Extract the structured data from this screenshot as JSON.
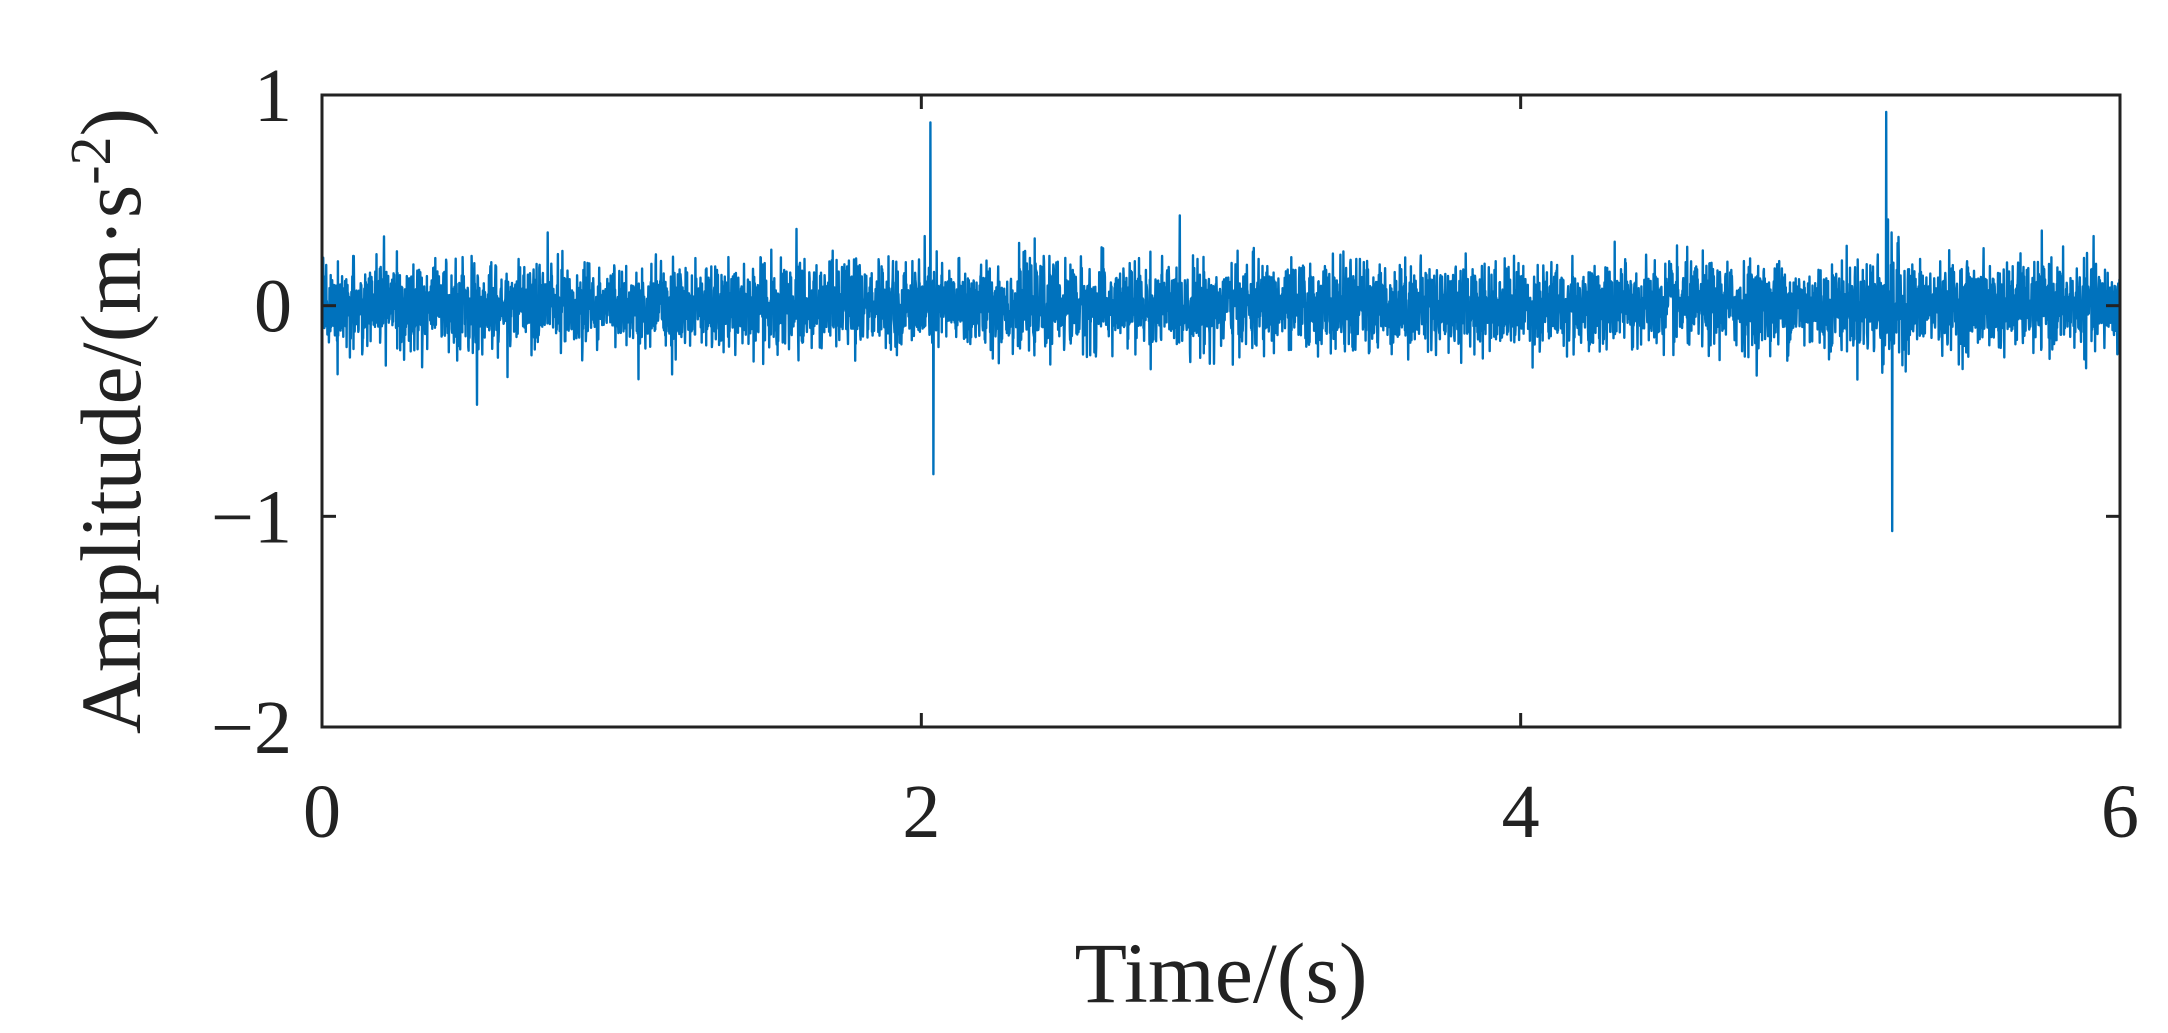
{
  "chart_data": {
    "type": "line",
    "title": "",
    "xlabel": "Time/(s)",
    "ylabel_main": "Amplitude/(m·s",
    "ylabel_sup": "-2",
    "ylabel_close": ")",
    "xlim": [
      0,
      6
    ],
    "ylim": [
      -2,
      1
    ],
    "x_ticks": [
      0,
      2,
      4,
      6
    ],
    "x_tick_labels": [
      "0",
      "2",
      "4",
      "6"
    ],
    "y_ticks": [
      -2,
      -1,
      0,
      1
    ],
    "y_tick_labels": [
      "−2",
      "−1",
      "0",
      "1"
    ],
    "grid": false,
    "legend": "none",
    "colors": {
      "series": "#0072BD",
      "axes": "#222222"
    },
    "series": [
      {
        "signal": "vibration acceleration, noise band about ±0.3",
        "peaks": [
          {
            "x": 2.03,
            "y": 0.87
          },
          {
            "x": 2.04,
            "y": -0.8
          },
          {
            "x": 5.22,
            "y": 0.92
          },
          {
            "x": 5.24,
            "y": -1.07
          }
        ]
      }
    ]
  }
}
